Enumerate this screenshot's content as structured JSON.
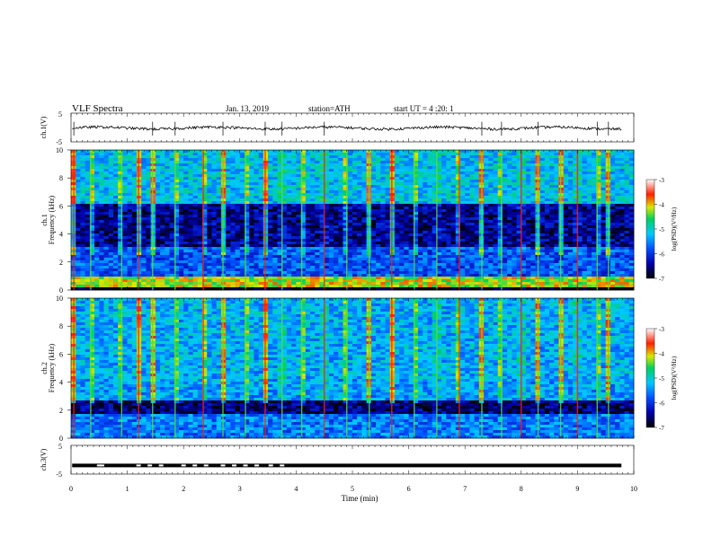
{
  "header": {
    "title": "VLF Spectra",
    "date": "Jan. 13, 2019",
    "station": "station=ATH",
    "start": "start UT = 4 :20: 1"
  },
  "chart_data": [
    {
      "type": "line",
      "panel": "ch1-waveform",
      "ylabel": "ch.1(V)",
      "xlim": [
        0,
        10
      ],
      "ylim": [
        -5,
        5
      ],
      "yticks": [
        "5",
        "-5"
      ],
      "color": "#000000",
      "baseline": -0.2,
      "spike_times_min": [
        0.05,
        1.45,
        1.85,
        2.7,
        3.45,
        3.75,
        4.5,
        7.3,
        7.65,
        8.3,
        9.35,
        9.55
      ]
    },
    {
      "type": "heatmap",
      "panel": "ch1-spectrogram",
      "xlim": [
        0,
        10
      ],
      "ylim": [
        0,
        10
      ],
      "ylabel_lines": [
        "ch.1",
        "Frequency (kHz)"
      ],
      "yticks": [
        "0",
        "2",
        "4",
        "6",
        "8",
        "10"
      ],
      "colorbar": {
        "label": "log(PSD)(V²/Hz)",
        "ticks": [
          "-3",
          "-4",
          "-5",
          "-6",
          "-7"
        ],
        "range": [
          -7,
          -3
        ]
      },
      "bands_khz": [
        {
          "f0": 0.0,
          "f1": 0.25,
          "level": -7
        },
        {
          "f0": 0.25,
          "f1": 1.0,
          "level": -4.2
        },
        {
          "f0": 1.0,
          "f1": 3.0,
          "level": -5.8
        },
        {
          "f0": 3.0,
          "f1": 6.2,
          "level": -6.5
        },
        {
          "f0": 6.2,
          "f1": 10.0,
          "level": -5.2
        }
      ],
      "burst_times_min": [
        0.05,
        0.35,
        0.9,
        1.2,
        1.45,
        1.85,
        2.35,
        2.7,
        3.1,
        3.45,
        3.75,
        4.1,
        4.5,
        4.9,
        5.3,
        5.7,
        6.1,
        6.5,
        6.9,
        7.3,
        7.65,
        8.0,
        8.3,
        8.7,
        9.0,
        9.35,
        9.55
      ]
    },
    {
      "type": "heatmap",
      "panel": "ch2-spectrogram",
      "xlim": [
        0,
        10
      ],
      "ylim": [
        0,
        10
      ],
      "ylabel_lines": [
        "ch.2",
        "Frequency (kHz)"
      ],
      "yticks": [
        "0",
        "2",
        "4",
        "6",
        "8",
        "10"
      ],
      "colorbar": {
        "label": "log(PSD)(V²/Hz)",
        "ticks": [
          "-3",
          "-4",
          "-5",
          "-6",
          "-7"
        ],
        "range": [
          -7,
          -3
        ]
      },
      "bands_khz": [
        {
          "f0": 0.0,
          "f1": 1.8,
          "level": -5.6
        },
        {
          "f0": 1.8,
          "f1": 2.6,
          "level": -6.6
        },
        {
          "f0": 2.6,
          "f1": 4.3,
          "level": -5.4
        },
        {
          "f0": 4.3,
          "f1": 10.0,
          "level": -5.3
        }
      ],
      "burst_times_min": [
        0.05,
        0.35,
        0.9,
        1.2,
        1.45,
        1.85,
        2.35,
        2.7,
        3.1,
        3.45,
        3.75,
        4.1,
        4.5,
        4.9,
        5.3,
        5.7,
        6.1,
        6.5,
        6.9,
        7.3,
        7.65,
        8.0,
        8.3,
        8.7,
        9.0,
        9.35,
        9.55
      ]
    },
    {
      "type": "line",
      "panel": "ch3-waveform",
      "ylabel": "ch.3(V)",
      "xlim": [
        0,
        10
      ],
      "ylim": [
        -5,
        5
      ],
      "yticks": [
        "5",
        "-5"
      ],
      "level_v": -2,
      "gap_times_min": [
        0.5,
        0.55,
        1.2,
        1.4,
        1.6,
        2.0,
        2.2,
        2.4,
        2.7,
        2.9,
        3.1,
        3.3,
        3.55,
        3.75
      ]
    }
  ],
  "xaxis": {
    "label": "Time (min)",
    "ticks": [
      "0",
      "1",
      "2",
      "3",
      "4",
      "5",
      "6",
      "7",
      "8",
      "9",
      "10"
    ]
  }
}
